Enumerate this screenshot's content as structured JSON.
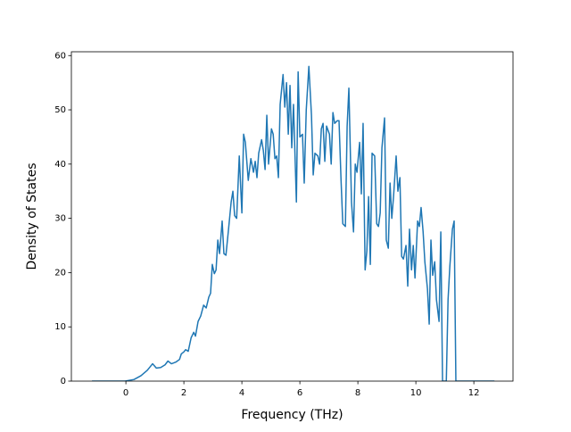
{
  "chart_data": {
    "type": "line",
    "xlabel": "Frequency (THz)",
    "ylabel": "Density of States",
    "color": "#1f77b4",
    "xlim": [
      -1.88,
      13.35
    ],
    "ylim": [
      0,
      60.7
    ],
    "xticks": [
      0,
      2,
      4,
      6,
      8,
      10,
      12
    ],
    "yticks": [
      0,
      10,
      20,
      30,
      40,
      50,
      60
    ],
    "x": [
      -1.17,
      -0.03,
      0.28,
      0.52,
      0.74,
      0.92,
      1.05,
      1.2,
      1.35,
      1.45,
      1.57,
      1.72,
      1.85,
      1.91,
      2.0,
      2.06,
      2.15,
      2.25,
      2.34,
      2.4,
      2.49,
      2.58,
      2.68,
      2.77,
      2.86,
      2.92,
      2.98,
      3.05,
      3.11,
      3.17,
      3.23,
      3.32,
      3.38,
      3.45,
      3.54,
      3.63,
      3.69,
      3.75,
      3.82,
      3.91,
      4.0,
      4.06,
      4.12,
      4.22,
      4.31,
      4.4,
      4.46,
      4.52,
      4.58,
      4.68,
      4.74,
      4.8,
      4.86,
      4.92,
      5.02,
      5.08,
      5.14,
      5.2,
      5.26,
      5.32,
      5.42,
      5.48,
      5.54,
      5.6,
      5.66,
      5.72,
      5.78,
      5.88,
      5.94,
      6.0,
      6.09,
      6.15,
      6.22,
      6.31,
      6.4,
      6.46,
      6.52,
      6.62,
      6.68,
      6.74,
      6.8,
      6.86,
      6.92,
      7.02,
      7.08,
      7.14,
      7.2,
      7.29,
      7.35,
      7.42,
      7.48,
      7.57,
      7.63,
      7.69,
      7.78,
      7.85,
      7.91,
      7.97,
      8.06,
      8.12,
      8.18,
      8.25,
      8.31,
      8.37,
      8.43,
      8.49,
      8.58,
      8.65,
      8.71,
      8.77,
      8.83,
      8.92,
      8.98,
      9.05,
      9.11,
      9.17,
      9.23,
      9.32,
      9.38,
      9.45,
      9.51,
      9.57,
      9.66,
      9.72,
      9.78,
      9.85,
      9.91,
      9.97,
      10.06,
      10.12,
      10.18,
      10.25,
      10.31,
      10.4,
      10.46,
      10.52,
      10.58,
      10.65,
      10.71,
      10.8,
      10.86,
      10.92,
      11.05,
      11.11,
      11.17,
      11.26,
      11.32,
      11.38,
      12.71
    ],
    "values": [
      0,
      0,
      0.3,
      1,
      2,
      3.2,
      2.4,
      2.5,
      3,
      3.7,
      3.2,
      3.5,
      4,
      5,
      5.4,
      5.8,
      5.5,
      8,
      9,
      8.3,
      11,
      12,
      14,
      13.5,
      15.5,
      16.2,
      21.5,
      19.8,
      20.5,
      26,
      23.5,
      29.5,
      23.5,
      23.2,
      28,
      33,
      35,
      30.5,
      30,
      41.5,
      31,
      45.5,
      44,
      37,
      41,
      38.5,
      40.5,
      37.5,
      42,
      44.5,
      42.5,
      39,
      49,
      40,
      46.5,
      45.5,
      41,
      41.5,
      37.5,
      51,
      56.5,
      50.5,
      55,
      45.5,
      54.5,
      43,
      51,
      33,
      57,
      45,
      45.5,
      36.5,
      50,
      58,
      49,
      38,
      42,
      41.5,
      40,
      46.5,
      47.5,
      40.5,
      47,
      45.5,
      40,
      49.5,
      47.5,
      48,
      48,
      37,
      29,
      28.5,
      47,
      54,
      33,
      27.5,
      40,
      38.5,
      44,
      34.5,
      47.5,
      20.5,
      24,
      34,
      21.5,
      42,
      41.5,
      29,
      28.5,
      31,
      43,
      48.5,
      26,
      24.5,
      36.5,
      30,
      34,
      41.5,
      35,
      37.5,
      23,
      22.5,
      25,
      17.5,
      28,
      20.5,
      25,
      19,
      29.5,
      28.5,
      32,
      27.5,
      22,
      17,
      10.5,
      26,
      19.5,
      22,
      15,
      11,
      27.5,
      0,
      0,
      15,
      21,
      28,
      29.5,
      0,
      0
    ]
  }
}
